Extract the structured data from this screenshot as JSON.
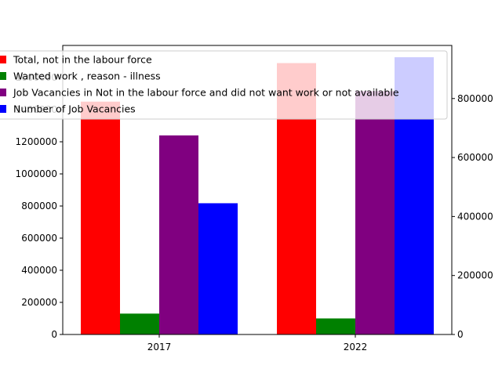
{
  "chart_data": {
    "type": "bar",
    "categories": [
      "2017",
      "2022"
    ],
    "left_axis": {
      "ylim": [
        0,
        1800000
      ],
      "ticks": [
        0,
        200000,
        400000,
        600000,
        800000,
        1000000,
        1200000,
        1400000,
        1600000
      ],
      "tick_labels": [
        "0",
        "200000",
        "400000",
        "600000",
        "800000",
        "1000000",
        "1200000",
        "1400000",
        "1600000"
      ]
    },
    "right_axis": {
      "ylim": [
        0,
        980000
      ],
      "ticks": [
        0,
        200000,
        400000,
        600000,
        800000
      ],
      "tick_labels": [
        "0",
        "200000",
        "400000",
        "600000",
        "800000"
      ]
    },
    "series": [
      {
        "name": "Total, not in the labour force",
        "axis": "left",
        "color": "#ff0000",
        "values": [
          1450000,
          1690000
        ]
      },
      {
        "name": "Wanted work , reason - illness",
        "axis": "left",
        "color": "#008000",
        "values": [
          130000,
          100000
        ]
      },
      {
        "name": "Job Vacancies in Not in the labour force and did not want work or not available",
        "axis": "right",
        "color": "#800080",
        "values": [
          675000,
          825000
        ]
      },
      {
        "name": "Number of Job Vacancies",
        "axis": "right",
        "color": "#0000ff",
        "values": [
          445000,
          940000
        ]
      }
    ],
    "legend": {
      "position": "upper-left"
    },
    "grid": false
  }
}
